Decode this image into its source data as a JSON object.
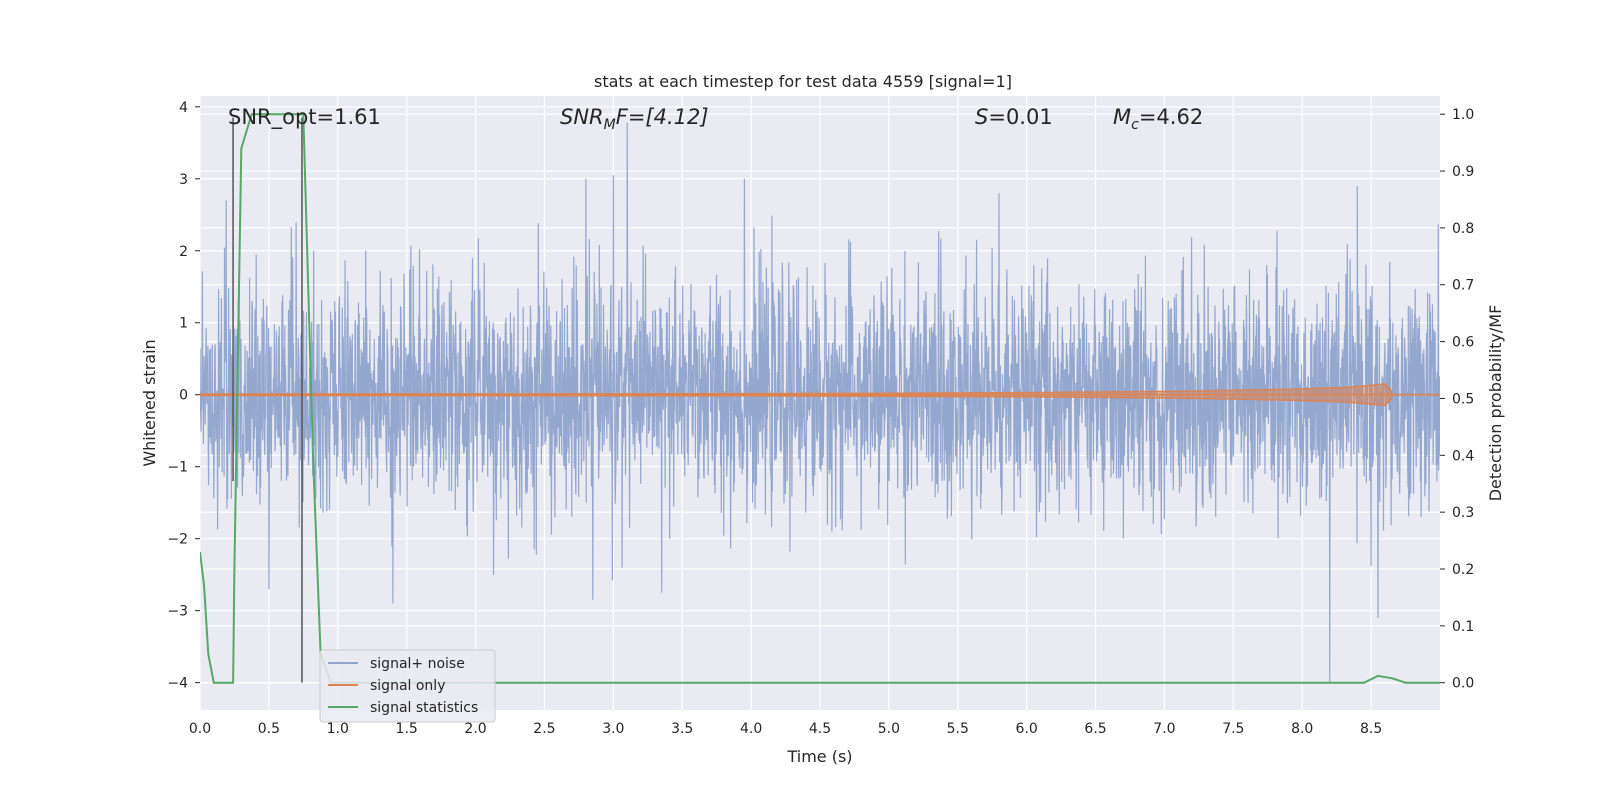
{
  "chart_data": {
    "type": "line",
    "title": "stats at each timestep for test data 4559 [signal=1]",
    "xlabel": "Time (s)",
    "ylabel_left": "Whitened strain",
    "ylabel_right": "Detection probability/MF",
    "xlim": [
      0.0,
      9.0
    ],
    "ylim_left": [
      -4.38,
      4.15
    ],
    "ylim_right": [
      -0.048,
      1.032
    ],
    "x_ticks": [
      "0.0",
      "0.5",
      "1.0",
      "1.5",
      "2.0",
      "2.5",
      "3.0",
      "3.5",
      "4.0",
      "4.5",
      "5.0",
      "5.5",
      "6.0",
      "6.5",
      "7.0",
      "7.5",
      "8.0",
      "8.5"
    ],
    "y_ticks_left": [
      "4",
      "3",
      "2",
      "1",
      "0",
      "−1",
      "−2",
      "−3",
      "−4"
    ],
    "y_ticks_right": [
      "1.0",
      "0.9",
      "0.8",
      "0.7",
      "0.6",
      "0.5",
      "0.4",
      "0.3",
      "0.2",
      "0.1",
      "0.0"
    ],
    "grid": true,
    "legend_position": "lower-left",
    "annotations": {
      "snr_opt": "SNR_opt=1.61",
      "snr_mf_sym": "SNR",
      "snr_mf_sub": "M",
      "snr_mf_rest": "F=[4.12]",
      "s_sym": "S",
      "s_rest": "=0.01",
      "mc_sym": "M",
      "mc_sub": "c",
      "mc_rest": "=4.62"
    },
    "series": [
      {
        "name": "signal+ noise",
        "color": "#8fa3cc",
        "axis": "left",
        "description_values": "noise band between about -2.8 and 3.8, spikes at 3.1 (3.78) and 8.2 (-4.0)",
        "spikes": [
          [
            0.19,
            2.7
          ],
          [
            2.8,
            3.0
          ],
          [
            3.0,
            3.05
          ],
          [
            3.1,
            3.78
          ],
          [
            3.95,
            3.0
          ],
          [
            5.8,
            2.8
          ],
          [
            8.4,
            2.9
          ],
          [
            0.5,
            -2.7
          ],
          [
            1.4,
            -2.9
          ],
          [
            2.85,
            -2.85
          ],
          [
            3.35,
            -2.75
          ],
          [
            8.2,
            -4.0
          ],
          [
            8.55,
            -3.1
          ]
        ]
      },
      {
        "name": "signal only",
        "color": "#dd8452",
        "axis": "left",
        "values_x": [
          0.0,
          2.0,
          4.0,
          5.0,
          6.0,
          7.0,
          7.5,
          8.0,
          8.3,
          8.5,
          8.6,
          8.65
        ],
        "values_amp": [
          0.01,
          0.012,
          0.015,
          0.02,
          0.03,
          0.045,
          0.06,
          0.08,
          0.1,
          0.13,
          0.15,
          0.05
        ]
      },
      {
        "name": "signal statistics",
        "color": "#55a868",
        "axis": "right",
        "x": [
          0.0,
          0.03,
          0.06,
          0.1,
          0.24,
          0.25,
          0.3,
          0.375,
          0.5,
          0.625,
          0.74,
          0.75,
          0.82,
          0.875,
          0.95,
          1.0,
          2.0,
          4.0,
          6.0,
          8.0,
          8.45,
          8.55,
          8.65,
          8.75,
          8.85,
          9.0
        ],
        "y": [
          0.23,
          0.17,
          0.05,
          0.0,
          0.0,
          0.2,
          0.94,
          1.0,
          1.0,
          1.0,
          1.0,
          1.0,
          0.4,
          0.05,
          0.0,
          0.0,
          0.0,
          0.0,
          0.0,
          0.0,
          0.0,
          0.012,
          0.008,
          0.0,
          0.0,
          0.0
        ]
      }
    ],
    "markers": [
      {
        "x": 0.24,
        "y_left_top": 3.85,
        "y_left_bottom": -1.2,
        "color": "#555555"
      },
      {
        "x": 0.74,
        "y_left_top": 3.85,
        "y_left_bottom": -4.0,
        "color": "#555555"
      }
    ]
  }
}
